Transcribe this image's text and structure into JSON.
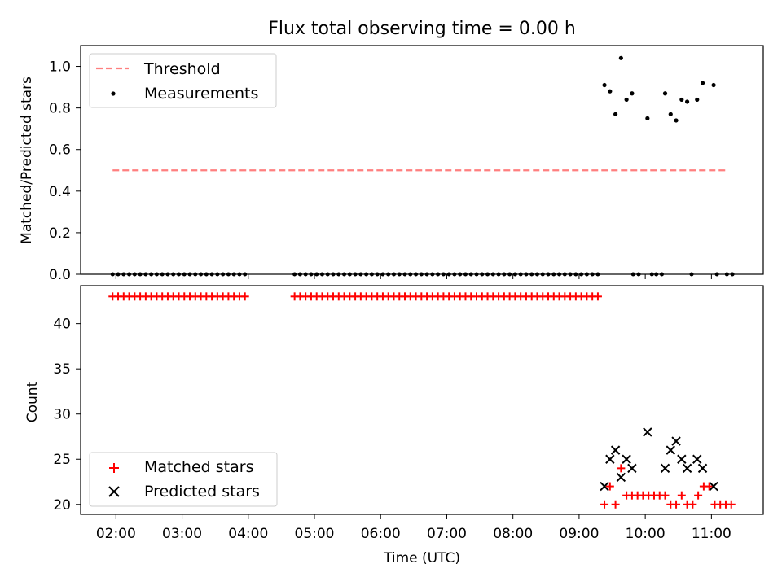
{
  "chart_data": [
    {
      "type": "scatter",
      "title": "Flux total observing time = 0.00 h",
      "xlabel": "",
      "ylabel": "Matched/Predicted stars",
      "xlim": [
        "01:28",
        "11:47"
      ],
      "ylim": [
        0,
        1.1
      ],
      "yticks": [
        0.0,
        0.2,
        0.4,
        0.6,
        0.8,
        1.0
      ],
      "ytick_labels": [
        "0.0",
        "0.2",
        "0.4",
        "0.6",
        "0.8",
        "1.0"
      ],
      "grid": false,
      "legend": {
        "placement": "top-left",
        "entries": [
          "Threshold",
          "Measurements"
        ]
      },
      "threshold": {
        "name": "Threshold",
        "value": 0.5,
        "x_start": "01:57",
        "x_end": "11:13",
        "color": "#ff7f7f",
        "style": "dashed"
      },
      "measurements": {
        "name": "Measurements",
        "color": "#000000",
        "zero_groups": [
          {
            "start": "01:57",
            "end": "03:59",
            "step_min": 5
          },
          {
            "start": "04:42",
            "end": "09:20",
            "step_min": 5
          },
          {
            "times": [
              "09:49",
              "09:54",
              "10:06",
              "10:10",
              "10:15",
              "10:42",
              "11:05",
              "11:14",
              "11:19"
            ]
          }
        ],
        "points": [
          {
            "x": "09:23",
            "y": 0.91
          },
          {
            "x": "09:28",
            "y": 0.88
          },
          {
            "x": "09:33",
            "y": 0.77
          },
          {
            "x": "09:38",
            "y": 1.04
          },
          {
            "x": "09:43",
            "y": 0.84
          },
          {
            "x": "09:48",
            "y": 0.87
          },
          {
            "x": "10:02",
            "y": 0.75
          },
          {
            "x": "10:18",
            "y": 0.87
          },
          {
            "x": "10:23",
            "y": 0.77
          },
          {
            "x": "10:28",
            "y": 0.74
          },
          {
            "x": "10:33",
            "y": 0.84
          },
          {
            "x": "10:38",
            "y": 0.83
          },
          {
            "x": "10:47",
            "y": 0.84
          },
          {
            "x": "10:52",
            "y": 0.92
          },
          {
            "x": "11:02",
            "y": 0.91
          }
        ]
      }
    },
    {
      "type": "scatter",
      "title": "",
      "xlabel": "Time (UTC)",
      "ylabel": "Count",
      "xlim": [
        "01:28",
        "11:47"
      ],
      "xticks": [
        "02:00",
        "03:00",
        "04:00",
        "05:00",
        "06:00",
        "07:00",
        "08:00",
        "09:00",
        "10:00",
        "11:00"
      ],
      "ylim": [
        18.9,
        44.2
      ],
      "yticks": [
        20,
        25,
        30,
        35,
        40
      ],
      "ytick_labels": [
        "20",
        "25",
        "30",
        "35",
        "40"
      ],
      "grid": false,
      "legend": {
        "placement": "bottom-left",
        "entries": [
          "Matched stars",
          "Predicted stars"
        ]
      },
      "series": [
        {
          "name": "Matched stars",
          "marker": "+",
          "color": "#ff0000",
          "constant_groups": [
            {
              "start": "01:57",
              "end": "03:59",
              "step_min": 5,
              "value": 43
            },
            {
              "start": "04:42",
              "end": "09:20",
              "step_min": 5,
              "value": 43
            }
          ],
          "points": [
            {
              "x": "09:23",
              "y": 20
            },
            {
              "x": "09:28",
              "y": 22
            },
            {
              "x": "09:33",
              "y": 20
            },
            {
              "x": "09:38",
              "y": 24
            },
            {
              "x": "09:43",
              "y": 21
            },
            {
              "x": "09:48",
              "y": 21
            },
            {
              "x": "09:53",
              "y": 21
            },
            {
              "x": "09:58",
              "y": 21
            },
            {
              "x": "10:03",
              "y": 21
            },
            {
              "x": "10:08",
              "y": 21
            },
            {
              "x": "10:13",
              "y": 21
            },
            {
              "x": "10:18",
              "y": 21
            },
            {
              "x": "10:23",
              "y": 20
            },
            {
              "x": "10:28",
              "y": 20
            },
            {
              "x": "10:33",
              "y": 21
            },
            {
              "x": "10:38",
              "y": 20
            },
            {
              "x": "10:43",
              "y": 20
            },
            {
              "x": "10:48",
              "y": 21
            },
            {
              "x": "10:53",
              "y": 22
            },
            {
              "x": "10:58",
              "y": 22
            },
            {
              "x": "11:03",
              "y": 20
            },
            {
              "x": "11:08",
              "y": 20
            },
            {
              "x": "11:13",
              "y": 20
            },
            {
              "x": "11:18",
              "y": 20
            }
          ]
        },
        {
          "name": "Predicted stars",
          "marker": "x",
          "color": "#000000",
          "points": [
            {
              "x": "09:23",
              "y": 22
            },
            {
              "x": "09:28",
              "y": 25
            },
            {
              "x": "09:33",
              "y": 26
            },
            {
              "x": "09:38",
              "y": 23
            },
            {
              "x": "09:43",
              "y": 25
            },
            {
              "x": "09:48",
              "y": 24
            },
            {
              "x": "10:02",
              "y": 28
            },
            {
              "x": "10:18",
              "y": 24
            },
            {
              "x": "10:23",
              "y": 26
            },
            {
              "x": "10:28",
              "y": 27
            },
            {
              "x": "10:33",
              "y": 25
            },
            {
              "x": "10:38",
              "y": 24
            },
            {
              "x": "10:47",
              "y": 25
            },
            {
              "x": "10:52",
              "y": 24
            },
            {
              "x": "11:02",
              "y": 22
            }
          ]
        }
      ]
    }
  ]
}
